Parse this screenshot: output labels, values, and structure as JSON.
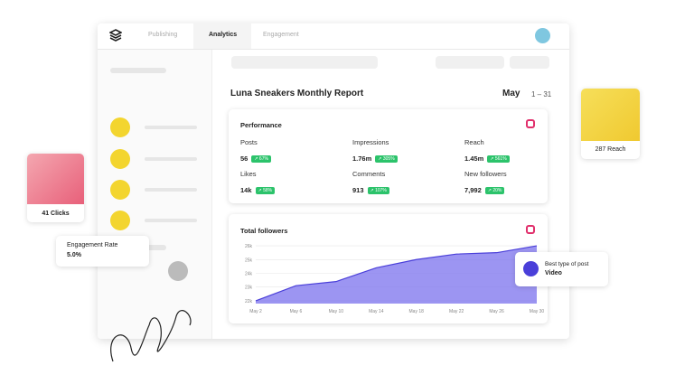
{
  "nav": {
    "tabs": [
      "Publishing",
      "Analytics",
      "Engagement"
    ]
  },
  "report": {
    "title": "Luna Sneakers Monthly Report",
    "month": "May",
    "range": "1 – 31"
  },
  "performance": {
    "title": "Performance",
    "metrics": [
      {
        "label": "Posts",
        "value": "56",
        "change": "↗ 67%"
      },
      {
        "label": "Impressions",
        "value": "1.76m",
        "change": "↗ 305%"
      },
      {
        "label": "Reach",
        "value": "1.45m",
        "change": "↗ 561%"
      },
      {
        "label": "Likes",
        "value": "14k",
        "change": "↗ 58%"
      },
      {
        "label": "Comments",
        "value": "913",
        "change": "↗ 107%"
      },
      {
        "label": "New followers",
        "value": "7,992",
        "change": "↗ 20%"
      }
    ]
  },
  "followers": {
    "type": "area",
    "title": "Total followers",
    "categories": [
      "May 2",
      "May 6",
      "May 10",
      "May 14",
      "May 18",
      "May 22",
      "May 26",
      "May 30"
    ],
    "values": [
      22000,
      23100,
      23400,
      24400,
      25000,
      25400,
      25500,
      26000
    ],
    "color": "#7b72ee",
    "ylim": [
      21800,
      26200
    ],
    "yticks": [
      {
        "value": 22000,
        "label": "22k"
      },
      {
        "value": 23000,
        "label": "23k"
      },
      {
        "value": 24000,
        "label": "24k"
      },
      {
        "value": 25000,
        "label": "25k"
      },
      {
        "value": 26000,
        "label": "26k"
      }
    ],
    "grid": true
  },
  "cards": {
    "clicks": "41 Clicks",
    "engagement_label": "Engagement Rate",
    "engagement_value": "5.0%",
    "reach": "287 Reach",
    "best_label": "Best type of post",
    "best_value": "Video"
  }
}
